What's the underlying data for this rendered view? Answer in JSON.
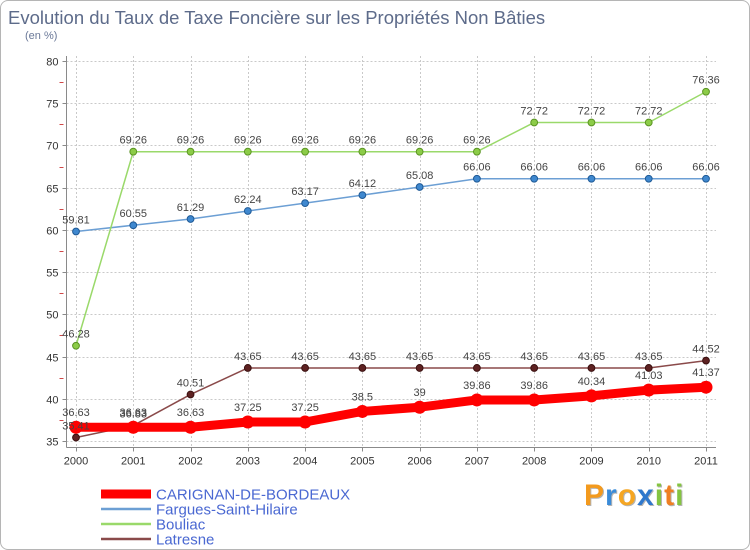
{
  "chart_data": {
    "type": "line",
    "title": "Evolution du Taux de Taxe Foncière sur les Propriétés Non Bâties",
    "subtitle": "(en %)",
    "xlabel": "",
    "ylabel": "",
    "categories": [
      "2000",
      "2001",
      "2002",
      "2003",
      "2004",
      "2005",
      "2006",
      "2007",
      "2008",
      "2009",
      "2010",
      "2011"
    ],
    "ylim": [
      35,
      80
    ],
    "yticks": [
      35,
      40,
      45,
      50,
      55,
      60,
      65,
      70,
      75,
      80
    ],
    "grid": true,
    "legend_position": "bottom-left",
    "series": [
      {
        "name": "CARIGNAN-DE-BORDEAUX",
        "color": "#ff0000",
        "point_color": "#ff0000",
        "point_edge": "#e00000",
        "values": [
          36.63,
          36.63,
          36.63,
          37.25,
          37.25,
          38.5,
          39,
          39.86,
          39.86,
          40.34,
          41.03,
          41.37
        ]
      },
      {
        "name": "Fargues-Saint-Hilaire",
        "color": "#6c9fd4",
        "point_color": "#3f88cf",
        "point_edge": "#1f5a96",
        "values": [
          59.81,
          60.55,
          61.29,
          62.24,
          63.17,
          64.12,
          65.08,
          66.06,
          66.06,
          66.06,
          66.06,
          66.06
        ]
      },
      {
        "name": "Bouliac",
        "color": "#9ad96a",
        "point_color": "#8ccc48",
        "point_edge": "#5a9322",
        "values": [
          46.28,
          69.26,
          69.26,
          69.26,
          69.26,
          69.26,
          69.26,
          69.26,
          72.72,
          72.72,
          72.72,
          76.36
        ]
      },
      {
        "name": "Latresne",
        "color": "#8a4a4a",
        "point_color": "#5e2222",
        "point_edge": "#3a1010",
        "values": [
          35.41,
          36.83,
          40.51,
          43.65,
          43.65,
          43.65,
          43.65,
          43.65,
          43.65,
          43.65,
          43.65,
          44.52
        ]
      }
    ]
  },
  "logo": {
    "text": "Proxiti",
    "colors": [
      "#f39a1e",
      "#3a8bd8",
      "#f5a623",
      "#2f78cc",
      "#85c441",
      "#ef7f22",
      "#85c441"
    ]
  }
}
